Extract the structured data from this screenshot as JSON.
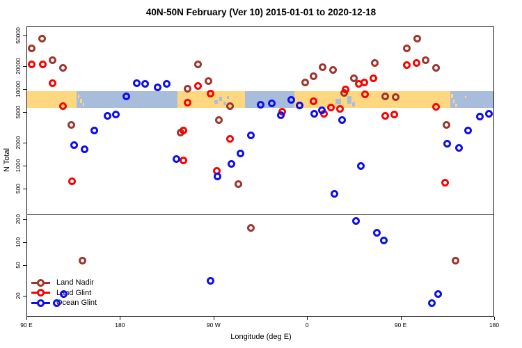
{
  "title": "40N-50N February (Ver 10)   2015-01-01 to 2020-12-18",
  "axes": {
    "x": {
      "label": "Longitude (deg E)",
      "ticks": [
        {
          "lon": 90,
          "label": "90 E"
        },
        {
          "lon": 180,
          "label": "180"
        },
        {
          "lon": 270,
          "label": "90 W"
        },
        {
          "lon": 360,
          "label": "0"
        },
        {
          "lon": 450,
          "label": "90 E"
        },
        {
          "lon": 540,
          "label": "180"
        }
      ]
    },
    "y": {
      "label": "N Total",
      "scale": "log10",
      "ticks": [
        20,
        50,
        100,
        200,
        500,
        1000,
        2000,
        5000,
        10000,
        20000,
        50000
      ]
    }
  },
  "legend": [
    {
      "label": "Land Nadir",
      "color": "#9E352E"
    },
    {
      "label": "Land Glint",
      "color": "#F80400"
    },
    {
      "label": "Ocean Glint",
      "color": "#0D0DF2"
    }
  ],
  "reference_line": {
    "n": 230
  },
  "map_band": {
    "n_range": [
      5700,
      9400
    ],
    "land_color": "#FFD780",
    "ocean_color": "#A7BDDB",
    "segments": [
      {
        "type": "land",
        "from": 90,
        "to": 138
      },
      {
        "type": "ocean",
        "from": 138,
        "to": 235
      },
      {
        "type": "land",
        "from": 235,
        "to": 300
      },
      {
        "type": "ocean",
        "from": 300,
        "to": 348
      },
      {
        "type": "land",
        "from": 348,
        "to": 498
      },
      {
        "type": "ocean",
        "from": 498,
        "to": 540
      }
    ],
    "specks": {
      "land_on_ocean": [
        [
          139.5,
          1.5,
          5,
          5
        ],
        [
          141.5,
          2,
          11,
          6
        ],
        [
          144,
          1.5,
          17,
          4
        ],
        [
          498.5,
          2,
          4,
          6
        ],
        [
          500.5,
          1.5,
          12,
          5
        ],
        [
          502.5,
          2,
          18,
          4
        ],
        [
          512,
          1,
          7,
          3
        ]
      ],
      "ocean_on_land": [
        [
          271,
          3,
          13,
          5
        ],
        [
          275.5,
          3,
          8,
          6
        ],
        [
          279.5,
          2.5,
          15,
          5
        ],
        [
          283,
          2,
          7,
          4
        ],
        [
          366,
          2,
          15,
          5
        ],
        [
          369,
          1.5,
          9,
          4
        ],
        [
          387,
          6,
          11,
          8
        ],
        [
          399,
          4,
          7,
          11
        ],
        [
          403.5,
          2.5,
          16,
          6
        ]
      ]
    }
  },
  "chart_data": {
    "type": "scatter",
    "xlabel": "Longitude (deg E)",
    "ylabel": "N Total",
    "x_range_deg_east": [
      90,
      540
    ],
    "ylim": [
      14,
      65000
    ],
    "yscale": "log",
    "grid": false,
    "legend_position": "bottom-left",
    "series": [
      {
        "name": "Land Nadir",
        "color": "#9E352E",
        "points": [
          [
            105,
            46000
          ],
          [
            95,
            34000
          ],
          [
            115,
            24000
          ],
          [
            125,
            19000
          ],
          [
            133,
            3400
          ],
          [
            238,
            2700
          ],
          [
            255,
            21000
          ],
          [
            265,
            12600
          ],
          [
            245,
            10200
          ],
          [
            286,
            6000
          ],
          [
            275,
            3900
          ],
          [
            358,
            12300
          ],
          [
            366,
            14800
          ],
          [
            375,
            19500
          ],
          [
            385,
            17600
          ],
          [
            396,
            8900
          ],
          [
            405,
            13700
          ],
          [
            425,
            22000
          ],
          [
            435,
            8100
          ],
          [
            445,
            7800
          ],
          [
            456,
            34000
          ],
          [
            466,
            46000
          ],
          [
            474,
            24000
          ],
          [
            484,
            19000
          ],
          [
            494,
            3400
          ],
          [
            144,
            58
          ],
          [
            294,
            580
          ],
          [
            306,
            152
          ],
          [
            503,
            58
          ]
        ]
      },
      {
        "name": "Land Glint",
        "color": "#F80400",
        "points": [
          [
            95,
            21000
          ],
          [
            106,
            21000
          ],
          [
            115,
            12000
          ],
          [
            125,
            6000
          ],
          [
            134,
            620
          ],
          [
            241,
            2900
          ],
          [
            241,
            1160
          ],
          [
            255,
            11000
          ],
          [
            267,
            8800
          ],
          [
            245,
            6700
          ],
          [
            286,
            2260
          ],
          [
            273,
            850
          ],
          [
            336,
            5100
          ],
          [
            366,
            7000
          ],
          [
            376,
            4800
          ],
          [
            383,
            5700
          ],
          [
            392,
            5450
          ],
          [
            397,
            9800
          ],
          [
            410,
            11800
          ],
          [
            415,
            12300
          ],
          [
            424,
            13700
          ],
          [
            416,
            8600
          ],
          [
            435,
            4500
          ],
          [
            444,
            4700
          ],
          [
            456,
            20800
          ],
          [
            465,
            21700
          ],
          [
            484,
            5900
          ],
          [
            493,
            600
          ]
        ]
      },
      {
        "name": "Ocean Glint",
        "color": "#0D0DF2",
        "points": [
          [
            196,
            12000
          ],
          [
            204,
            11800
          ],
          [
            216,
            10600
          ],
          [
            225,
            11600
          ],
          [
            186,
            8100
          ],
          [
            168,
            4500
          ],
          [
            176,
            4700
          ],
          [
            155,
            2850
          ],
          [
            136,
            1870
          ],
          [
            146,
            1620
          ],
          [
            234,
            1230
          ],
          [
            315,
            6300
          ],
          [
            326,
            6460
          ],
          [
            335,
            4600
          ],
          [
            345,
            7160
          ],
          [
            353,
            6170
          ],
          [
            367,
            4800
          ],
          [
            374,
            5330
          ],
          [
            394,
            3900
          ],
          [
            306,
            2510
          ],
          [
            296,
            1430
          ],
          [
            287,
            1060
          ],
          [
            274,
            716
          ],
          [
            386,
            424
          ],
          [
            267,
            31
          ],
          [
            407,
            191
          ],
          [
            427,
            134
          ],
          [
            434,
            106
          ],
          [
            412,
            980
          ],
          [
            495,
            1950
          ],
          [
            506,
            1720
          ],
          [
            515,
            2850
          ],
          [
            526,
            4400
          ],
          [
            535,
            4800
          ],
          [
            486,
            21
          ],
          [
            480,
            16
          ],
          [
            126,
            21
          ],
          [
            119,
            16
          ]
        ]
      }
    ]
  }
}
